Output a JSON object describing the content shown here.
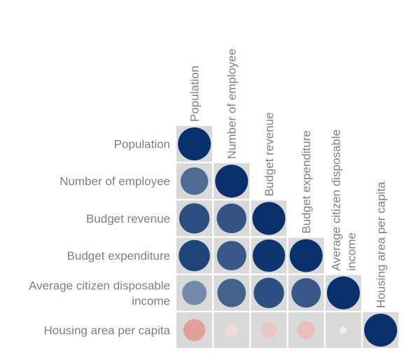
{
  "chart_data": {
    "type": "heatmap",
    "style": "lower-triangle correlation matrix with circles sized and colored by correlation",
    "variables": [
      [
        "Population"
      ],
      [
        "Number of employee"
      ],
      [
        "Budget revenue"
      ],
      [
        "Budget expenditure"
      ],
      [
        "Average citizen disposable",
        "income"
      ],
      [
        "Housing area per capita"
      ]
    ],
    "matrix": [
      [
        1.0
      ],
      [
        0.7,
        1.0
      ],
      [
        0.85,
        0.82,
        1.0
      ],
      [
        0.9,
        0.8,
        0.97,
        1.0
      ],
      [
        0.55,
        0.75,
        0.85,
        0.8,
        1.0
      ],
      [
        -0.45,
        -0.15,
        -0.25,
        -0.3,
        0.05,
        1.0
      ]
    ],
    "value_range": [
      -1,
      1
    ],
    "colors": {
      "negative": "#c0392b",
      "neutral": "#f7f7f7",
      "positive": "#08306b",
      "cell_background": "#d9d9d9",
      "label": "#7f7f7f"
    }
  }
}
